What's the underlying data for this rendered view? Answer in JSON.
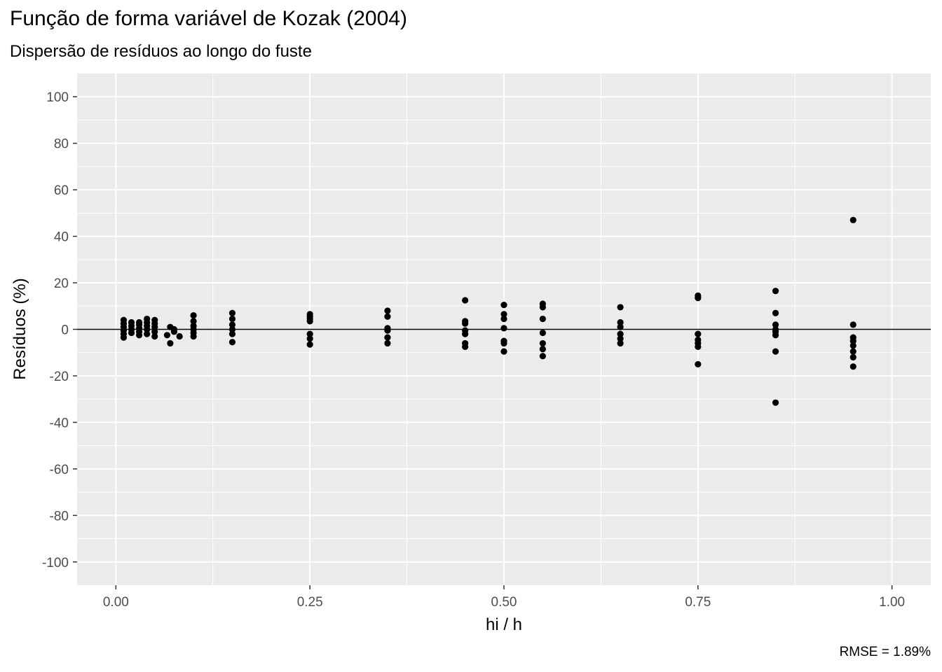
{
  "chart_data": {
    "type": "scatter",
    "title": "Função de forma variável de Kozak (2004)",
    "subtitle": "Dispersão de resíduos ao longo do fuste",
    "xlabel": "hi / h",
    "ylabel": "Resíduos (%)",
    "caption": "RMSE = 1.89%",
    "xlim": [
      -0.05,
      1.05
    ],
    "ylim": [
      -110,
      110
    ],
    "x_ticks": [
      0.0,
      0.25,
      0.5,
      0.75,
      1.0
    ],
    "x_tick_labels": [
      "0.00",
      "0.25",
      "0.50",
      "0.75",
      "1.00"
    ],
    "y_ticks": [
      -100,
      -80,
      -60,
      -40,
      -20,
      0,
      20,
      40,
      60,
      80,
      100
    ],
    "y_tick_labels": [
      "-100",
      "-80",
      "-60",
      "-40",
      "-20",
      "0",
      "20",
      "40",
      "60",
      "80",
      "100"
    ],
    "hline": 0,
    "grid": true,
    "colors": {
      "panel": "#ebebeb",
      "grid": "#ffffff",
      "point": "#000000"
    },
    "points": [
      [
        0.01,
        4
      ],
      [
        0.01,
        2.5
      ],
      [
        0.01,
        1
      ],
      [
        0.01,
        -0.5
      ],
      [
        0.01,
        -2
      ],
      [
        0.01,
        -3.5
      ],
      [
        0.02,
        3
      ],
      [
        0.02,
        1.5
      ],
      [
        0.02,
        0
      ],
      [
        0.02,
        -1.5
      ],
      [
        0.03,
        3
      ],
      [
        0.03,
        2
      ],
      [
        0.03,
        0.5
      ],
      [
        0.03,
        -1
      ],
      [
        0.03,
        -2.5
      ],
      [
        0.04,
        4.5
      ],
      [
        0.04,
        3
      ],
      [
        0.04,
        1.5
      ],
      [
        0.04,
        0
      ],
      [
        0.04,
        -2
      ],
      [
        0.05,
        4
      ],
      [
        0.05,
        2.5
      ],
      [
        0.05,
        1
      ],
      [
        0.05,
        -1
      ],
      [
        0.05,
        -3
      ],
      [
        0.066,
        -2.5
      ],
      [
        0.07,
        1
      ],
      [
        0.07,
        -6
      ],
      [
        0.075,
        0
      ],
      [
        0.075,
        -1
      ],
      [
        0.082,
        -3
      ],
      [
        0.1,
        6
      ],
      [
        0.1,
        3.5
      ],
      [
        0.1,
        1.5
      ],
      [
        0.1,
        0
      ],
      [
        0.1,
        -1.5
      ],
      [
        0.1,
        -3
      ],
      [
        0.15,
        7
      ],
      [
        0.15,
        4.5
      ],
      [
        0.15,
        2
      ],
      [
        0.15,
        0
      ],
      [
        0.15,
        -2
      ],
      [
        0.15,
        -5.5
      ],
      [
        0.25,
        6.5
      ],
      [
        0.25,
        5.5
      ],
      [
        0.25,
        4.5
      ],
      [
        0.25,
        3.5
      ],
      [
        0.25,
        -2
      ],
      [
        0.25,
        -4
      ],
      [
        0.25,
        -6.5
      ],
      [
        0.35,
        8
      ],
      [
        0.35,
        5.5
      ],
      [
        0.35,
        0.5
      ],
      [
        0.35,
        -0.5
      ],
      [
        0.35,
        -3.5
      ],
      [
        0.35,
        -6
      ],
      [
        0.45,
        12.5
      ],
      [
        0.45,
        3.5
      ],
      [
        0.45,
        2.5
      ],
      [
        0.45,
        -0.5
      ],
      [
        0.45,
        -2
      ],
      [
        0.45,
        -6
      ],
      [
        0.45,
        -7.5
      ],
      [
        0.5,
        10.5
      ],
      [
        0.5,
        6.5
      ],
      [
        0.5,
        4.5
      ],
      [
        0.5,
        0.5
      ],
      [
        0.5,
        -5
      ],
      [
        0.5,
        -6
      ],
      [
        0.5,
        -9.5
      ],
      [
        0.55,
        11
      ],
      [
        0.55,
        9.5
      ],
      [
        0.55,
        4.5
      ],
      [
        0.55,
        -1.5
      ],
      [
        0.55,
        -6
      ],
      [
        0.55,
        -8.5
      ],
      [
        0.55,
        -11.5
      ],
      [
        0.65,
        9.5
      ],
      [
        0.65,
        3
      ],
      [
        0.65,
        1
      ],
      [
        0.65,
        -2
      ],
      [
        0.65,
        -4
      ],
      [
        0.65,
        -6
      ],
      [
        0.75,
        14.5
      ],
      [
        0.75,
        13.5
      ],
      [
        0.75,
        -2
      ],
      [
        0.75,
        -4.5
      ],
      [
        0.75,
        -6
      ],
      [
        0.75,
        -7.5
      ],
      [
        0.75,
        -15
      ],
      [
        0.85,
        16.5
      ],
      [
        0.85,
        7
      ],
      [
        0.85,
        2
      ],
      [
        0.85,
        0
      ],
      [
        0.85,
        -1
      ],
      [
        0.85,
        -2.5
      ],
      [
        0.85,
        -9.5
      ],
      [
        0.85,
        -31.5
      ],
      [
        0.95,
        47
      ],
      [
        0.95,
        2
      ],
      [
        0.95,
        -3.5
      ],
      [
        0.95,
        -5
      ],
      [
        0.95,
        -7
      ],
      [
        0.95,
        -9.5
      ],
      [
        0.95,
        -12
      ],
      [
        0.95,
        -16
      ]
    ]
  }
}
